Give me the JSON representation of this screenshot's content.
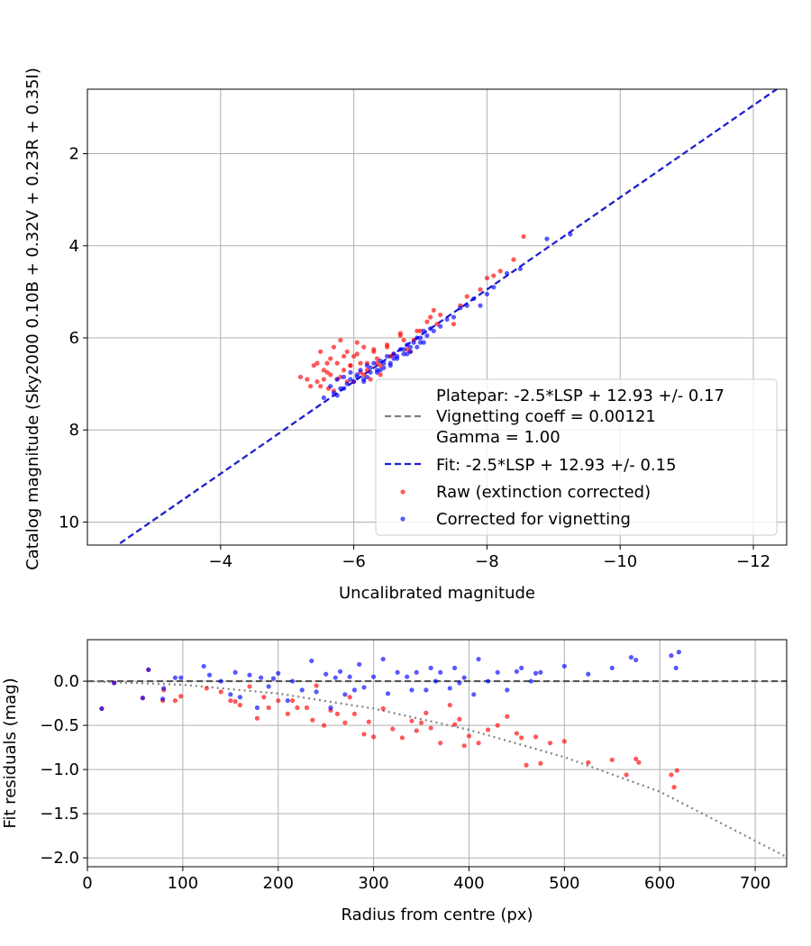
{
  "chart_data": [
    {
      "type": "scatter",
      "title": "",
      "xlabel": "Uncalibrated magnitude",
      "ylabel": "Catalog magnitude (Sky2000 0.10B + 0.32V + 0.23R + 0.35I)",
      "xlim": [
        -2.0,
        -12.5
      ],
      "ylim": [
        10.5,
        0.6
      ],
      "x_inverted": true,
      "y_inverted": true,
      "xticks": [
        -4,
        -6,
        -8,
        -10,
        -12
      ],
      "xtick_labels": [
        "−4",
        "−6",
        "−8",
        "−10",
        "−12"
      ],
      "yticks": [
        2,
        4,
        6,
        8,
        10
      ],
      "ytick_labels": [
        "2",
        "4",
        "6",
        "8",
        "10"
      ],
      "grid": true,
      "legend_position": "lower-right",
      "legend": [
        {
          "label": "Platepar: -2.5*LSP + 12.93 +/- 0.17",
          "style": "none"
        },
        {
          "label": "Vignetting coeff = 0.00121",
          "style": "gray-dashed"
        },
        {
          "label": "Gamma = 1.00",
          "style": "none"
        },
        {
          "label": "Fit: -2.5*LSP + 12.93 +/- 0.15",
          "style": "blue-dashed"
        },
        {
          "label": "Raw (extinction corrected)",
          "style": "red-dot"
        },
        {
          "label": "Corrected for vignetting",
          "style": "blue-dot"
        }
      ],
      "lines": [
        {
          "name": "Platepar",
          "color": "#7f7f7f",
          "dash": "dashed",
          "x": [
            -2.0,
            -12.5
          ],
          "y": [
            10.95,
            0.45
          ]
        },
        {
          "name": "Fit",
          "color": "#1f1fd6",
          "dash": "dashed",
          "x": [
            -2.0,
            -12.5
          ],
          "y": [
            10.95,
            0.45
          ]
        }
      ],
      "series": [
        {
          "name": "Raw (extinction corrected)",
          "color": "#ff0000",
          "x": [
            -5.2,
            -5.35,
            -5.4,
            -5.45,
            -5.5,
            -5.55,
            -5.6,
            -5.62,
            -5.65,
            -5.7,
            -5.75,
            -5.8,
            -5.85,
            -5.9,
            -5.95,
            -6.0,
            -6.05,
            -6.1,
            -6.15,
            -6.2,
            -6.25,
            -6.3,
            -6.35,
            -6.4,
            -6.5,
            -6.6,
            -6.7,
            -6.8,
            -6.9,
            -7.0,
            -7.1,
            -7.2,
            -7.3,
            -7.5,
            -7.7,
            -7.9,
            -8.1,
            -8.2,
            -8.4,
            -8.55,
            -5.45,
            -5.55,
            -5.65,
            -5.8,
            -5.95,
            -6.05,
            -6.2,
            -6.35,
            -6.55,
            -6.75,
            -6.95,
            -7.15,
            -5.5,
            -5.7,
            -5.9,
            -6.1,
            -6.3,
            -6.5,
            -6.7,
            -5.6,
            -5.85,
            -6.0,
            -6.4,
            -6.85,
            -7.25,
            -7.6,
            -8.0,
            -5.3,
            -5.75,
            -6.15
          ],
          "y": [
            6.85,
            7.05,
            6.6,
            6.95,
            6.3,
            6.7,
            6.55,
            7.1,
            6.8,
            6.2,
            6.9,
            6.05,
            6.7,
            6.3,
            6.6,
            6.4,
            6.1,
            6.75,
            6.2,
            6.55,
            6.9,
            6.25,
            6.45,
            6.6,
            6.15,
            6.35,
            5.95,
            6.25,
            6.05,
            5.85,
            5.65,
            5.4,
            5.5,
            5.7,
            5.1,
            4.95,
            4.65,
            4.55,
            4.3,
            3.8,
            6.55,
            6.9,
            6.45,
            6.85,
            6.6,
            6.35,
            6.7,
            6.55,
            6.4,
            6.05,
            5.85,
            5.55,
            7.05,
            7.15,
            6.95,
            6.55,
            6.3,
            6.2,
            5.9,
            6.75,
            6.4,
            6.95,
            6.8,
            6.3,
            5.7,
            5.3,
            4.7,
            6.9,
            6.55,
            6.8
          ]
        },
        {
          "name": "Corrected for vignetting",
          "color": "#0000ff",
          "x": [
            -5.55,
            -5.65,
            -5.7,
            -5.75,
            -5.8,
            -5.85,
            -5.9,
            -5.95,
            -6.0,
            -6.05,
            -6.1,
            -6.15,
            -6.2,
            -6.25,
            -6.3,
            -6.35,
            -6.4,
            -6.45,
            -6.5,
            -6.55,
            -6.6,
            -6.65,
            -6.7,
            -6.75,
            -6.8,
            -6.85,
            -6.9,
            -6.95,
            -7.0,
            -7.05,
            -7.1,
            -7.2,
            -7.3,
            -7.4,
            -7.5,
            -7.6,
            -7.7,
            -7.8,
            -7.9,
            -8.0,
            -8.1,
            -8.3,
            -8.5,
            -8.9,
            -9.25,
            -5.75,
            -5.85,
            -5.95,
            -6.05,
            -6.15,
            -6.25,
            -6.35,
            -6.45,
            -6.55,
            -6.65,
            -6.75,
            -6.85,
            -6.95,
            -7.05,
            -7.15,
            -6.2,
            -6.4,
            -6.6,
            -6.8,
            -7.0
          ],
          "y": [
            7.3,
            7.05,
            7.2,
            6.9,
            7.1,
            6.85,
            7.0,
            6.75,
            6.95,
            6.8,
            6.7,
            6.9,
            6.6,
            6.75,
            6.55,
            6.7,
            6.5,
            6.65,
            6.4,
            6.55,
            6.35,
            6.45,
            6.25,
            6.35,
            6.15,
            6.3,
            6.1,
            6.2,
            6.0,
            6.1,
            5.95,
            5.85,
            5.75,
            5.6,
            5.55,
            5.35,
            5.3,
            5.15,
            5.3,
            5.05,
            4.9,
            4.6,
            4.5,
            3.85,
            3.75,
            7.25,
            7.1,
            6.9,
            6.85,
            6.95,
            6.65,
            6.75,
            6.55,
            6.6,
            6.4,
            6.25,
            6.2,
            6.0,
            5.85,
            5.8,
            6.85,
            6.7,
            6.45,
            6.35,
            6.1
          ]
        }
      ]
    },
    {
      "type": "scatter",
      "title": "",
      "xlabel": "Radius from centre (px)",
      "ylabel": "Fit residuals (mag)",
      "xlim": [
        0,
        733
      ],
      "ylim": [
        -2.1,
        0.47
      ],
      "xticks": [
        0,
        100,
        200,
        300,
        400,
        500,
        600,
        700
      ],
      "xtick_labels": [
        "0",
        "100",
        "200",
        "300",
        "400",
        "500",
        "600",
        "700"
      ],
      "yticks": [
        0.0,
        -0.5,
        -1.0,
        -1.5,
        -2.0
      ],
      "ytick_labels": [
        "0.0",
        "−0.5",
        "−1.0",
        "−1.5",
        "−2.0"
      ],
      "grid": true,
      "lines": [
        {
          "name": "zero",
          "color": "#555555",
          "dash": "dashed",
          "x": [
            0,
            733
          ],
          "y": [
            0,
            0
          ]
        },
        {
          "name": "vignetting model",
          "color": "#808080",
          "dash": "dotted",
          "x": [
            0,
            100,
            200,
            300,
            400,
            500,
            600,
            733
          ],
          "y": [
            0.0,
            -0.04,
            -0.14,
            -0.31,
            -0.55,
            -0.86,
            -1.25,
            -1.99
          ]
        }
      ],
      "series": [
        {
          "name": "Raw (extinction corrected)",
          "color": "#ff0000",
          "x": [
            15,
            28,
            58,
            64,
            79,
            80,
            92,
            98,
            125,
            140,
            150,
            155,
            160,
            170,
            178,
            185,
            190,
            200,
            210,
            215,
            220,
            230,
            236,
            240,
            248,
            255,
            262,
            270,
            275,
            280,
            290,
            295,
            300,
            310,
            320,
            330,
            340,
            345,
            350,
            355,
            360,
            370,
            380,
            385,
            390,
            395,
            400,
            410,
            420,
            430,
            440,
            450,
            455,
            460,
            470,
            475,
            485,
            500,
            525,
            550,
            565,
            575,
            578,
            612,
            615,
            618
          ],
          "y": [
            -0.31,
            -0.02,
            -0.19,
            0.13,
            -0.22,
            -0.1,
            -0.22,
            -0.17,
            -0.08,
            -0.12,
            -0.22,
            -0.23,
            -0.27,
            -0.06,
            -0.42,
            -0.18,
            -0.3,
            -0.22,
            -0.37,
            -0.22,
            -0.3,
            -0.3,
            -0.44,
            -0.05,
            -0.5,
            -0.33,
            -0.37,
            -0.47,
            -0.18,
            -0.37,
            -0.6,
            -0.46,
            -0.63,
            -0.31,
            -0.54,
            -0.64,
            -0.45,
            -0.56,
            -0.47,
            -0.36,
            -0.53,
            -0.7,
            -0.27,
            -0.49,
            -0.43,
            -0.73,
            -0.62,
            -0.7,
            -0.55,
            -0.5,
            -0.4,
            -0.59,
            -0.64,
            -0.95,
            -0.63,
            -0.93,
            -0.7,
            -0.68,
            -0.92,
            -0.89,
            -1.06,
            -0.88,
            -0.92,
            -1.06,
            -1.2,
            -1.01
          ]
        },
        {
          "name": "Corrected for vignetting",
          "color": "#0000ff",
          "x": [
            15,
            28,
            58,
            64,
            79,
            80,
            92,
            98,
            122,
            128,
            140,
            150,
            155,
            160,
            170,
            178,
            182,
            190,
            195,
            200,
            210,
            215,
            225,
            235,
            240,
            250,
            255,
            260,
            265,
            270,
            275,
            280,
            285,
            290,
            300,
            310,
            315,
            325,
            335,
            340,
            345,
            355,
            360,
            365,
            370,
            380,
            385,
            390,
            395,
            405,
            410,
            420,
            430,
            440,
            450,
            455,
            465,
            470,
            475,
            500,
            525,
            550,
            570,
            575,
            612,
            617,
            620
          ],
          "y": [
            -0.31,
            -0.02,
            -0.19,
            0.13,
            -0.2,
            -0.08,
            0.04,
            0.04,
            0.17,
            0.07,
            0.0,
            -0.15,
            0.1,
            -0.18,
            0.07,
            -0.3,
            0.04,
            -0.06,
            0.03,
            0.09,
            -0.22,
            0.0,
            -0.1,
            0.23,
            -0.12,
            0.08,
            -0.3,
            0.04,
            0.11,
            -0.15,
            0.05,
            -0.1,
            0.19,
            -0.07,
            0.05,
            0.25,
            -0.14,
            0.1,
            0.05,
            -0.1,
            0.1,
            -0.1,
            0.15,
            0.0,
            0.1,
            -0.08,
            0.15,
            -0.02,
            0.04,
            -0.15,
            0.25,
            0.0,
            0.1,
            -0.1,
            0.11,
            0.15,
            0.0,
            0.09,
            0.1,
            0.17,
            0.08,
            0.15,
            0.27,
            0.24,
            0.29,
            0.15,
            0.33
          ]
        }
      ]
    }
  ]
}
